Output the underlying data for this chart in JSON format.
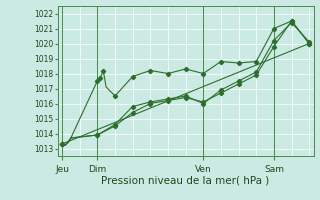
{
  "xlabel": "Pression niveau de la mer( hPa )",
  "bg_color": "#cceae4",
  "grid_color": "#ffffff",
  "line_color": "#2d6e2d",
  "vline_color": "#4a8a4a",
  "ylim": [
    1012.5,
    1022.5
  ],
  "xlim": [
    -3,
    171
  ],
  "yticks": [
    1013,
    1014,
    1015,
    1016,
    1017,
    1018,
    1019,
    1020,
    1021,
    1022
  ],
  "day_labels": [
    "Jeu",
    "Dim",
    "Ven",
    "Sam"
  ],
  "day_positions": [
    0,
    24,
    96,
    144
  ],
  "minor_vlines": [
    0,
    12,
    24,
    36,
    48,
    60,
    72,
    84,
    96,
    108,
    120,
    132,
    144,
    156,
    168
  ],
  "series1_x": [
    0,
    2,
    4,
    6,
    24,
    26,
    28,
    30,
    36,
    48,
    60,
    72,
    84,
    96,
    108,
    120,
    132,
    144,
    156,
    168
  ],
  "series1_y": [
    1013.3,
    1013.2,
    1013.4,
    1013.7,
    1017.5,
    1017.7,
    1018.2,
    1017.1,
    1016.5,
    1017.8,
    1018.2,
    1018.0,
    1018.3,
    1018.0,
    1018.8,
    1018.7,
    1018.8,
    1021.0,
    1021.5,
    1020.0
  ],
  "series2_x": [
    0,
    2,
    4,
    6,
    24,
    36,
    48,
    60,
    72,
    84,
    96,
    108,
    120,
    132,
    144,
    156,
    168
  ],
  "series2_y": [
    1013.3,
    1013.2,
    1013.4,
    1013.7,
    1013.9,
    1014.6,
    1015.8,
    1016.1,
    1016.3,
    1016.5,
    1016.0,
    1016.9,
    1017.5,
    1018.1,
    1020.2,
    1021.4,
    1020.1
  ],
  "series3_x": [
    0,
    2,
    4,
    6,
    24,
    36,
    48,
    60,
    72,
    84,
    96,
    108,
    120,
    132,
    144,
    156,
    168
  ],
  "series3_y": [
    1013.3,
    1013.2,
    1013.4,
    1013.7,
    1013.9,
    1014.5,
    1015.4,
    1016.0,
    1016.2,
    1016.4,
    1016.1,
    1016.7,
    1017.3,
    1017.9,
    1019.8,
    1021.5,
    1020.0
  ],
  "trend_x": [
    0,
    168
  ],
  "trend_y": [
    1013.3,
    1020.0
  ],
  "markers1_x": [
    0,
    24,
    26,
    28,
    36,
    48,
    60,
    72,
    84,
    96,
    108,
    120,
    132,
    144,
    156,
    168
  ],
  "markers1_y": [
    1013.3,
    1017.5,
    1017.7,
    1018.2,
    1016.5,
    1017.8,
    1018.2,
    1018.0,
    1018.3,
    1018.0,
    1018.8,
    1018.7,
    1018.8,
    1021.0,
    1021.5,
    1020.0
  ],
  "markers2_x": [
    0,
    24,
    36,
    48,
    60,
    72,
    84,
    96,
    108,
    120,
    132,
    144,
    156,
    168
  ],
  "markers2_y": [
    1013.3,
    1013.9,
    1014.6,
    1015.8,
    1016.1,
    1016.3,
    1016.5,
    1016.0,
    1016.9,
    1017.5,
    1018.1,
    1020.2,
    1021.4,
    1020.1
  ],
  "markers3_x": [
    0,
    24,
    36,
    48,
    60,
    72,
    84,
    96,
    108,
    120,
    132,
    144,
    156,
    168
  ],
  "markers3_y": [
    1013.3,
    1013.9,
    1014.5,
    1015.4,
    1016.0,
    1016.2,
    1016.4,
    1016.1,
    1016.7,
    1017.3,
    1017.9,
    1019.8,
    1021.5,
    1020.0
  ],
  "xlabel_fontsize": 7.5,
  "ytick_fontsize": 5.5,
  "xtick_fontsize": 6.5,
  "linewidth": 0.8,
  "markersize": 2.2
}
